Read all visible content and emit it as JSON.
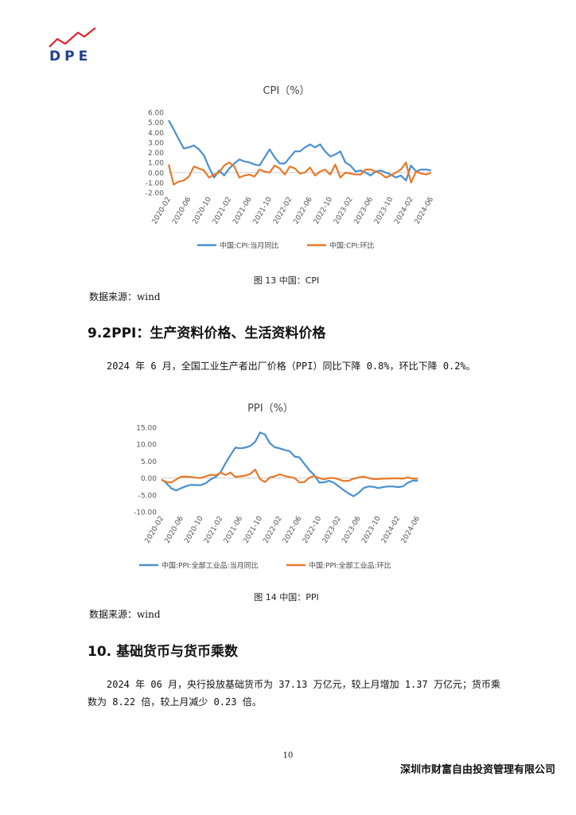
{
  "header": {
    "logo_text": "DPE",
    "accent": "#e0262f"
  },
  "charts": {
    "cpi": {
      "title": "CPI（%）",
      "caption": "图 13 中国：CPI",
      "source": "数据来源：wind",
      "legend": [
        "中国:CPI:当月同比",
        "中国:CPI:环比"
      ]
    },
    "ppi": {
      "title": "PPI（%）",
      "caption": "图 14 中国：PPI",
      "source": "数据来源：wind",
      "legend": [
        "中国:PPI:全部工业品:当月同比",
        "中国:PPI:全部工业品:环比"
      ]
    }
  },
  "sections": {
    "ppi_heading": "9.2PPI：生产资料价格、生活资料价格",
    "ppi_text": "2024 年 6 月，全国工业生产者出厂价格（PPI）同比下降 0.8%，环比下降 0.2%。",
    "money_heading": "10. 基础货币与货币乘数",
    "money_text": "2024 年 06 月，央行投放基础货币为 37.13 万亿元，较上月增加 1.37 万亿元；货币乘数为 8.22 倍，较上月减少 0.23 倍。"
  },
  "footer": {
    "page": "10",
    "company": "深圳市财富自由投资管理有限公司"
  },
  "chart_data": [
    {
      "type": "line",
      "title": "CPI（%）",
      "x_ticks": [
        "2020-02",
        "2020-06",
        "2020-10",
        "2021-02",
        "2021-06",
        "2021-10",
        "2022-02",
        "2022-06",
        "2022-10",
        "2023-02",
        "2023-06",
        "2023-10",
        "2024-02",
        "2024-06"
      ],
      "x_start": "2020-02",
      "x_end": "2024-06",
      "ylim": [
        -2,
        6
      ],
      "y_ticks": [
        "6.00",
        "5.00",
        "4.00",
        "3.00",
        "2.00",
        "1.00",
        "0.00",
        "-1.00",
        "-2.00"
      ],
      "colors": [
        "#4a90d0",
        "#e8792a"
      ],
      "series": [
        {
          "name": "中国:CPI:当月同比",
          "values": [
            5.2,
            4.3,
            3.3,
            2.4,
            2.5,
            2.7,
            2.3,
            1.7,
            0.5,
            -0.5,
            0.2,
            -0.3,
            0.4,
            0.9,
            1.3,
            1.1,
            1.0,
            0.8,
            0.7,
            1.5,
            2.3,
            1.5,
            0.9,
            0.9,
            1.5,
            2.1,
            2.1,
            2.5,
            2.8,
            2.5,
            2.8,
            2.1,
            1.6,
            1.8,
            2.1,
            1.0,
            0.7,
            0.1,
            0.2,
            0.0,
            -0.3,
            0.1,
            0.2,
            0.0,
            -0.2,
            -0.5,
            -0.3,
            -0.8,
            0.7,
            0.1,
            0.3,
            0.3,
            0.2
          ]
        },
        {
          "name": "中国:CPI:环比",
          "values": [
            0.8,
            -1.2,
            -0.9,
            -0.8,
            -0.4,
            0.6,
            0.4,
            0.2,
            -0.5,
            -0.2,
            0.0,
            0.7,
            1.0,
            0.6,
            -0.5,
            -0.3,
            -0.2,
            -0.4,
            0.3,
            0.1,
            0.0,
            0.7,
            0.4,
            -0.2,
            0.6,
            0.4,
            -0.1,
            0.0,
            0.5,
            -0.3,
            0.1,
            0.3,
            -0.2,
            0.8,
            -0.5,
            0.0,
            -0.1,
            -0.2,
            -0.2,
            0.3,
            0.3,
            0.1,
            -0.1,
            -0.5,
            -0.3,
            0.0,
            0.3,
            1.0,
            -1.0,
            0.1,
            -0.1,
            -0.2,
            0.0
          ]
        }
      ]
    },
    {
      "type": "line",
      "title": "PPI（%）",
      "x_ticks": [
        "2020-02",
        "2020-06",
        "2020-10",
        "2021-02",
        "2021-06",
        "2021-10",
        "2022-02",
        "2022-06",
        "2022-10",
        "2023-02",
        "2023-06",
        "2023-10",
        "2024-02",
        "2024-06"
      ],
      "x_start": "2020-02",
      "x_end": "2024-06",
      "ylim": [
        -10,
        15
      ],
      "y_ticks": [
        "15.00",
        "10.00",
        "5.00",
        "0.00",
        "-5.00",
        "-10.00"
      ],
      "colors": [
        "#4a90d0",
        "#e8792a"
      ],
      "series": [
        {
          "name": "中国:PPI:全部工业品:当月同比",
          "values": [
            -0.4,
            -1.5,
            -3.1,
            -3.7,
            -3.0,
            -2.4,
            -2.0,
            -2.1,
            -2.1,
            -1.5,
            -0.4,
            0.3,
            1.7,
            4.4,
            6.8,
            9.0,
            8.8,
            9.0,
            9.5,
            10.7,
            13.5,
            12.9,
            10.3,
            9.1,
            8.8,
            8.3,
            8.0,
            6.4,
            6.1,
            4.2,
            2.3,
            0.9,
            -1.3,
            -1.3,
            -0.8,
            -1.4,
            -2.5,
            -3.6,
            -4.6,
            -5.4,
            -4.4,
            -3.0,
            -2.5,
            -2.6,
            -3.0,
            -2.7,
            -2.5,
            -2.5,
            -2.7,
            -2.5,
            -1.4,
            -0.8,
            -0.8
          ]
        },
        {
          "name": "中国:PPI:全部工业品:环比",
          "values": [
            -0.5,
            -1.2,
            -1.3,
            -0.4,
            0.4,
            0.4,
            0.3,
            0.1,
            0.0,
            0.5,
            1.0,
            0.8,
            1.6,
            0.9,
            1.6,
            0.3,
            0.5,
            0.7,
            1.2,
            2.5,
            -0.3,
            -1.2,
            0.2,
            0.5,
            1.1,
            0.6,
            0.3,
            0.0,
            -1.3,
            -1.2,
            0.1,
            0.6,
            0.0,
            -0.4,
            0.0,
            0.0,
            -0.4,
            -0.9,
            -0.8,
            -0.2,
            0.2,
            0.4,
            0.0,
            -0.3,
            -0.3,
            -0.2,
            -0.2,
            -0.1,
            -0.1,
            -0.2,
            0.2,
            -0.2,
            -0.2
          ]
        }
      ]
    }
  ]
}
